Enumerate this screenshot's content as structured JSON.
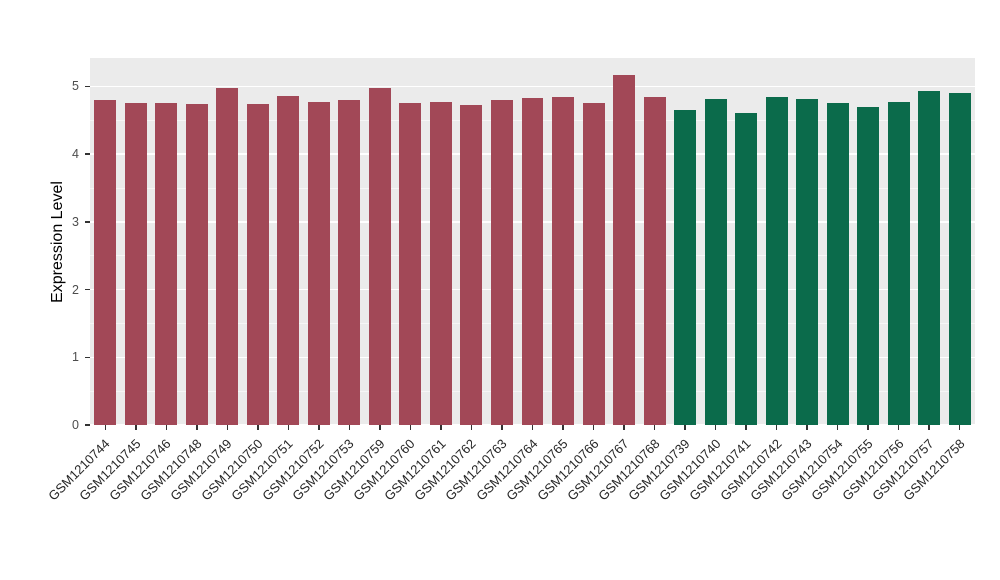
{
  "chart_data": {
    "type": "bar",
    "title": "",
    "xlabel": "",
    "ylabel": "Expression Level",
    "ylim": [
      0,
      5.42
    ],
    "yticks": [
      0,
      1,
      2,
      3,
      4,
      5
    ],
    "grid": "major-and-minor",
    "legend_position": "none",
    "panel_background": "#EBEBEB",
    "gridline_color": "#FFFFFF",
    "categories": [
      "GSM1210744",
      "GSM1210745",
      "GSM1210746",
      "GSM1210748",
      "GSM1210749",
      "GSM1210750",
      "GSM1210751",
      "GSM1210752",
      "GSM1210753",
      "GSM1210759",
      "GSM1210760",
      "GSM1210761",
      "GSM1210762",
      "GSM1210763",
      "GSM1210764",
      "GSM1210765",
      "GSM1210766",
      "GSM1210767",
      "GSM1210768",
      "GSM1210739",
      "GSM1210740",
      "GSM1210741",
      "GSM1210742",
      "GSM1210743",
      "GSM1210754",
      "GSM1210755",
      "GSM1210756",
      "GSM1210757",
      "GSM1210758"
    ],
    "values": [
      4.8,
      4.76,
      4.76,
      4.74,
      4.97,
      4.74,
      4.86,
      4.77,
      4.8,
      4.98,
      4.76,
      4.77,
      4.73,
      4.8,
      4.83,
      4.85,
      4.76,
      5.17,
      4.85,
      4.65,
      4.82,
      4.61,
      4.85,
      4.81,
      4.76,
      4.69,
      4.77,
      4.93,
      4.9
    ],
    "groups": [
      {
        "color": "#A24857",
        "count": 19
      },
      {
        "color": "#0B6B4B",
        "count": 10
      }
    ]
  }
}
